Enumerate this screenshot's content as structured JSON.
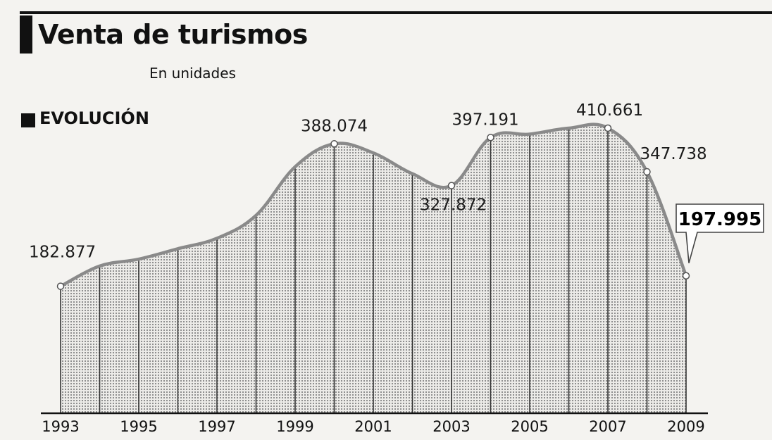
{
  "header": {
    "title": "Venta de turismos",
    "subtitle": "En unidades",
    "section": "EVOLUCIÓN"
  },
  "colors": {
    "line": "#8a8a8a",
    "fill_dot": "#b9b9b9",
    "gridline": "#333333",
    "axis": "#111111"
  },
  "chart_data": {
    "type": "area",
    "x": [
      1993,
      1994,
      1995,
      1996,
      1997,
      1998,
      1999,
      2000,
      2001,
      2002,
      2003,
      2004,
      2005,
      2006,
      2007,
      2008,
      2009
    ],
    "values": [
      182877,
      212000,
      222000,
      237000,
      252000,
      285000,
      355000,
      388074,
      375000,
      345000,
      327872,
      397191,
      402000,
      410661,
      410661,
      347738,
      197995
    ],
    "xticks": [
      "1993",
      "1995",
      "1997",
      "1999",
      "2001",
      "2003",
      "2005",
      "2007",
      "2009"
    ],
    "point_labels": [
      {
        "year": 1993,
        "text": "182.877"
      },
      {
        "year": 2000,
        "text": "388.074"
      },
      {
        "year": 2003,
        "text": "327.872"
      },
      {
        "year": 2004,
        "text": "397.191"
      },
      {
        "year": 2007,
        "text": "410.661"
      },
      {
        "year": 2008,
        "text": "347.738"
      },
      {
        "year": 2009,
        "text": "197.995",
        "highlight": true
      }
    ],
    "ylim": [
      0,
      410661
    ],
    "grid": "vertical"
  }
}
